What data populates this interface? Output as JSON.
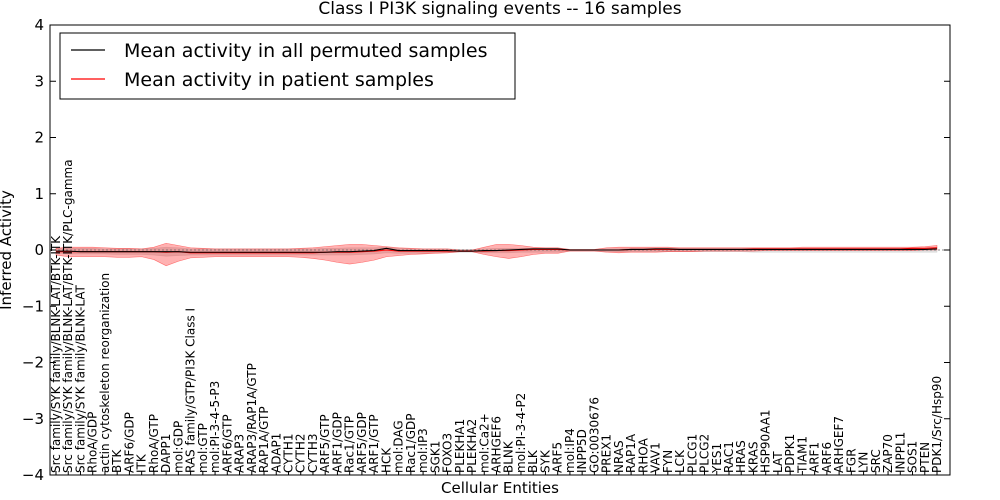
{
  "chart_data": {
    "type": "line",
    "title": "Class I PI3K signaling events -- 16 samples",
    "xlabel": "Cellular Entities",
    "ylabel": "Inferred Activity",
    "ylim": [
      -4,
      4
    ],
    "yticks": [
      -4,
      -3,
      -2,
      -1,
      0,
      1,
      2,
      3,
      4
    ],
    "ytick_labels": [
      "−4",
      "−3",
      "−2",
      "−1",
      "0",
      "1",
      "2",
      "3",
      "4"
    ],
    "legend_position": "top-left",
    "categories": [
      "Src family/SYK family/BLNK-LAT/BTK-ITK",
      "Src family/SYK family/BLNK-LAT/BTK-ITK/PLC-gamma",
      "Src family/SYK family/BLNK-LAT",
      "RhoA/GDP",
      "actin cytoskeleton reorganization",
      "BTK",
      "ARF6/GDP",
      "ITK",
      "RhoA/GTP",
      "DAPP1",
      "mol:GDP",
      "RAS family/GTP/PI3K Class I",
      "mol:GTP",
      "mol:PI-3-4-5-P3",
      "ARF6/GTP",
      "ARAP3",
      "ARAP3/RAP1A/GTP",
      "RAP1A/GTP",
      "ADAP1",
      "CYTH1",
      "CYTH2",
      "CYTH3",
      "ARF5/GTP",
      "ARF1/GDP",
      "Rac1/GTP",
      "ARF5/GDP",
      "ARF1/GTP",
      "HCK",
      "mol:DAG",
      "Rac1/GDP",
      "mol:IP3",
      "SGK1",
      "FOXO3",
      "PLEKHA1",
      "PLEKHA2",
      "mol:Ca2+",
      "ARHGEF6",
      "BLNK",
      "mol:PI-3-4-P2",
      "BLK",
      "SYK",
      "ARF5",
      "mol:IP4",
      "INPP5D",
      "GO:0030676",
      "PREX1",
      "NRAS",
      "RAP1A",
      "RHOA",
      "VAV1",
      "FYN",
      "LCK",
      "PLCG1",
      "PLCG2",
      "YES1",
      "RAC1",
      "HRAS",
      "KRAS",
      "HSP90AA1",
      "LAT",
      "PDPK1",
      "TIAM1",
      "ARF1",
      "ARF6",
      "ARHGEF7",
      "FGR",
      "LYN",
      "SRC",
      "ZAP70",
      "INPPL1",
      "SOS1",
      "PTEN",
      "PDK1/Src/Hsp90"
    ],
    "series": [
      {
        "name": "Mean activity in all permuted samples",
        "color": "#000000",
        "values": [
          -0.02,
          -0.02,
          -0.03,
          -0.03,
          -0.03,
          -0.03,
          -0.03,
          -0.03,
          -0.03,
          -0.03,
          -0.03,
          -0.04,
          -0.04,
          -0.04,
          -0.04,
          -0.04,
          -0.04,
          -0.04,
          -0.04,
          -0.04,
          -0.04,
          -0.04,
          -0.04,
          -0.03,
          -0.03,
          -0.02,
          -0.01,
          0.03,
          -0.01,
          -0.01,
          -0.01,
          -0.01,
          -0.01,
          -0.02,
          -0.02,
          -0.01,
          -0.01,
          0.0,
          0.01,
          0.02,
          0.02,
          0.02,
          0.0,
          0.0,
          0.0,
          0.0,
          0.0,
          0.01,
          0.01,
          0.02,
          0.02,
          0.01,
          0.01,
          0.01,
          0.01,
          0.01,
          0.01,
          0.01,
          0.01,
          0.01,
          0.01,
          0.01,
          0.01,
          0.01,
          0.01,
          0.01,
          0.01,
          0.01,
          0.01,
          0.01,
          0.01,
          0.01,
          0.02
        ]
      },
      {
        "name": "Mean activity in patient samples",
        "color": "#ff0000",
        "values": [
          -0.03,
          -0.03,
          -0.03,
          -0.03,
          -0.03,
          -0.03,
          -0.03,
          -0.03,
          -0.03,
          -0.04,
          -0.03,
          -0.05,
          -0.05,
          -0.05,
          -0.05,
          -0.05,
          -0.05,
          -0.05,
          -0.05,
          -0.05,
          -0.05,
          -0.05,
          -0.04,
          -0.04,
          -0.04,
          -0.03,
          -0.02,
          0.0,
          -0.02,
          -0.02,
          -0.02,
          -0.02,
          -0.02,
          -0.02,
          -0.02,
          -0.02,
          -0.01,
          -0.01,
          0.0,
          0.01,
          0.01,
          0.01,
          0.0,
          0.0,
          0.0,
          0.0,
          0.0,
          0.01,
          0.01,
          0.01,
          0.01,
          0.01,
          0.01,
          0.01,
          0.01,
          0.01,
          0.01,
          0.02,
          0.02,
          0.02,
          0.02,
          0.02,
          0.02,
          0.02,
          0.02,
          0.02,
          0.02,
          0.02,
          0.02,
          0.02,
          0.03,
          0.03,
          0.04
        ]
      }
    ],
    "patient_band": {
      "color": "#ff0000",
      "upper": [
        0.03,
        0.05,
        0.05,
        0.05,
        0.04,
        0.03,
        0.03,
        0.02,
        0.05,
        0.12,
        0.08,
        0.04,
        0.03,
        0.02,
        0.02,
        0.02,
        0.02,
        0.02,
        0.02,
        0.02,
        0.03,
        0.04,
        0.06,
        0.08,
        0.1,
        0.1,
        0.08,
        0.06,
        0.04,
        0.03,
        0.02,
        0.02,
        0.02,
        0.0,
        0.0,
        0.05,
        0.1,
        0.1,
        0.08,
        0.05,
        0.04,
        0.04,
        0.01,
        0.01,
        0.01,
        0.04,
        0.05,
        0.05,
        0.05,
        0.05,
        0.05,
        0.04,
        0.04,
        0.04,
        0.04,
        0.04,
        0.04,
        0.04,
        0.04,
        0.04,
        0.04,
        0.05,
        0.05,
        0.05,
        0.05,
        0.05,
        0.05,
        0.05,
        0.05,
        0.05,
        0.05,
        0.06,
        0.08
      ],
      "lower": [
        -0.09,
        -0.12,
        -0.12,
        -0.12,
        -0.12,
        -0.13,
        -0.13,
        -0.12,
        -0.17,
        -0.28,
        -0.2,
        -0.14,
        -0.13,
        -0.12,
        -0.12,
        -0.12,
        -0.12,
        -0.12,
        -0.12,
        -0.12,
        -0.13,
        -0.15,
        -0.18,
        -0.22,
        -0.25,
        -0.22,
        -0.18,
        -0.12,
        -0.1,
        -0.08,
        -0.07,
        -0.06,
        -0.05,
        -0.03,
        -0.03,
        -0.08,
        -0.12,
        -0.15,
        -0.12,
        -0.08,
        -0.06,
        -0.06,
        -0.02,
        -0.02,
        -0.02,
        -0.04,
        -0.05,
        -0.04,
        -0.04,
        -0.04,
        -0.03,
        -0.03,
        -0.03,
        -0.02,
        -0.02,
        -0.02,
        -0.02,
        -0.02,
        -0.01,
        -0.01,
        -0.01,
        -0.01,
        -0.01,
        -0.01,
        -0.01,
        -0.01,
        -0.01,
        -0.01,
        -0.01,
        -0.01,
        -0.01,
        0.0,
        0.0
      ]
    },
    "permuted_band": {
      "color": "#bbbbbb",
      "upper": [
        0.02,
        0.03,
        0.03,
        0.03,
        0.02,
        0.02,
        0.02,
        0.02,
        0.03,
        0.05,
        0.04,
        0.02,
        0.02,
        0.02,
        0.02,
        0.02,
        0.02,
        0.02,
        0.02,
        0.02,
        0.02,
        0.02,
        0.03,
        0.03,
        0.04,
        0.04,
        0.04,
        0.05,
        0.03,
        0.02,
        0.02,
        0.02,
        0.02,
        0.01,
        0.01,
        0.02,
        0.03,
        0.03,
        0.03,
        0.03,
        0.03,
        0.03,
        0.01,
        0.01,
        0.01,
        0.02,
        0.02,
        0.03,
        0.03,
        0.03,
        0.03,
        0.03,
        0.03,
        0.03,
        0.03,
        0.03,
        0.03,
        0.03,
        0.03,
        0.03,
        0.03,
        0.03,
        0.03,
        0.03,
        0.03,
        0.03,
        0.03,
        0.03,
        0.03,
        0.03,
        0.03,
        0.03,
        0.04
      ],
      "lower": [
        -0.06,
        -0.07,
        -0.07,
        -0.07,
        -0.07,
        -0.08,
        -0.08,
        -0.08,
        -0.09,
        -0.11,
        -0.1,
        -0.09,
        -0.09,
        -0.09,
        -0.09,
        -0.09,
        -0.09,
        -0.09,
        -0.09,
        -0.09,
        -0.09,
        -0.09,
        -0.09,
        -0.09,
        -0.09,
        -0.08,
        -0.07,
        -0.05,
        -0.06,
        -0.06,
        -0.06,
        -0.05,
        -0.05,
        -0.04,
        -0.04,
        -0.05,
        -0.05,
        -0.05,
        -0.04,
        -0.04,
        -0.04,
        -0.04,
        -0.02,
        -0.02,
        -0.02,
        -0.03,
        -0.03,
        -0.03,
        -0.03,
        -0.03,
        -0.03,
        -0.03,
        -0.03,
        -0.03,
        -0.03,
        -0.03,
        -0.03,
        -0.04,
        -0.04,
        -0.04,
        -0.04,
        -0.04,
        -0.04,
        -0.04,
        -0.04,
        -0.04,
        -0.04,
        -0.04,
        -0.04,
        -0.04,
        -0.04,
        -0.04,
        -0.04
      ]
    }
  }
}
